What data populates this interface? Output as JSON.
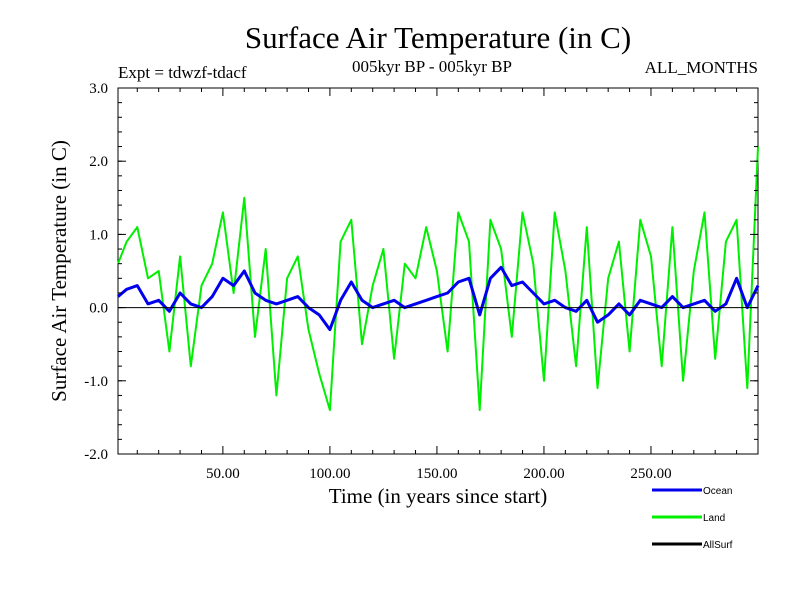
{
  "chart_data": {
    "type": "line",
    "title": "Surface Air Temperature (in C)",
    "subtitle": "005kyr BP - 005kyr BP",
    "experiment": "Expt = tdwzf-tdacf",
    "season": "ALL_MONTHS",
    "xlabel": "Time (in years since start)",
    "ylabel": "Surface Air Temperature (in C)",
    "xlim": [
      1,
      300
    ],
    "ylim": [
      -2.0,
      3.0
    ],
    "xticks": [
      50,
      100,
      150,
      200,
      250
    ],
    "xtick_labels": [
      "50.00",
      "100.00",
      "150.00",
      "200.00",
      "250.00"
    ],
    "yticks": [
      -2.0,
      -1.0,
      0.0,
      1.0,
      2.0,
      3.0
    ],
    "ytick_labels": [
      "-2.0",
      "-1.0",
      "0.0",
      "1.0",
      "2.0",
      "3.0"
    ],
    "grid": false,
    "zero_line": true,
    "legend_position": "bottom-right",
    "series": [
      {
        "name": "Land",
        "color": "#00ee00",
        "x": [
          1,
          5,
          10,
          15,
          20,
          25,
          30,
          35,
          40,
          45,
          50,
          55,
          60,
          65,
          70,
          75,
          80,
          85,
          90,
          95,
          100,
          105,
          110,
          115,
          120,
          125,
          130,
          135,
          140,
          145,
          150,
          155,
          160,
          165,
          170,
          175,
          180,
          185,
          190,
          195,
          200,
          205,
          210,
          215,
          220,
          225,
          230,
          235,
          240,
          245,
          250,
          255,
          260,
          265,
          270,
          275,
          280,
          285,
          290,
          295,
          300
        ],
        "values": [
          0.6,
          0.9,
          1.1,
          0.4,
          0.5,
          -0.6,
          0.7,
          -0.8,
          0.3,
          0.6,
          1.3,
          0.2,
          1.5,
          -0.4,
          0.8,
          -1.2,
          0.4,
          0.7,
          -0.3,
          -0.9,
          -1.4,
          0.9,
          1.2,
          -0.5,
          0.3,
          0.8,
          -0.7,
          0.6,
          0.4,
          1.1,
          0.5,
          -0.6,
          1.3,
          0.9,
          -1.4,
          1.2,
          0.8,
          -0.4,
          1.3,
          0.6,
          -1.0,
          1.3,
          0.5,
          -0.8,
          1.1,
          -1.1,
          0.4,
          0.9,
          -0.6,
          1.2,
          0.7,
          -0.8,
          1.1,
          -1.0,
          0.5,
          1.3,
          -0.7,
          0.9,
          1.2,
          -1.1,
          2.2
        ]
      },
      {
        "name": "Ocean",
        "color": "#0000ee",
        "x": [
          1,
          5,
          10,
          15,
          20,
          25,
          30,
          35,
          40,
          45,
          50,
          55,
          60,
          65,
          70,
          75,
          80,
          85,
          90,
          95,
          100,
          105,
          110,
          115,
          120,
          125,
          130,
          135,
          140,
          145,
          150,
          155,
          160,
          165,
          170,
          175,
          180,
          185,
          190,
          195,
          200,
          205,
          210,
          215,
          220,
          225,
          230,
          235,
          240,
          245,
          250,
          255,
          260,
          265,
          270,
          275,
          280,
          285,
          290,
          295,
          300
        ],
        "values": [
          0.15,
          0.25,
          0.3,
          0.05,
          0.1,
          -0.05,
          0.2,
          0.05,
          0.0,
          0.15,
          0.4,
          0.3,
          0.5,
          0.2,
          0.1,
          0.05,
          0.1,
          0.15,
          0.0,
          -0.1,
          -0.3,
          0.1,
          0.35,
          0.1,
          0.0,
          0.05,
          0.1,
          0.0,
          0.05,
          0.1,
          0.15,
          0.2,
          0.35,
          0.4,
          -0.1,
          0.4,
          0.55,
          0.3,
          0.35,
          0.2,
          0.05,
          0.1,
          0.0,
          -0.05,
          0.1,
          -0.2,
          -0.1,
          0.05,
          -0.1,
          0.1,
          0.05,
          0.0,
          0.15,
          0.0,
          0.05,
          0.1,
          -0.05,
          0.05,
          0.4,
          0.0,
          0.3
        ]
      },
      {
        "name": "AllSurf",
        "color": "#000000",
        "x": [],
        "values": []
      }
    ]
  },
  "legend": {
    "items": [
      {
        "label": "Ocean",
        "color": "#0000ee"
      },
      {
        "label": "Land",
        "color": "#00ee00"
      },
      {
        "label": "AllSurf",
        "color": "#000000"
      }
    ]
  }
}
